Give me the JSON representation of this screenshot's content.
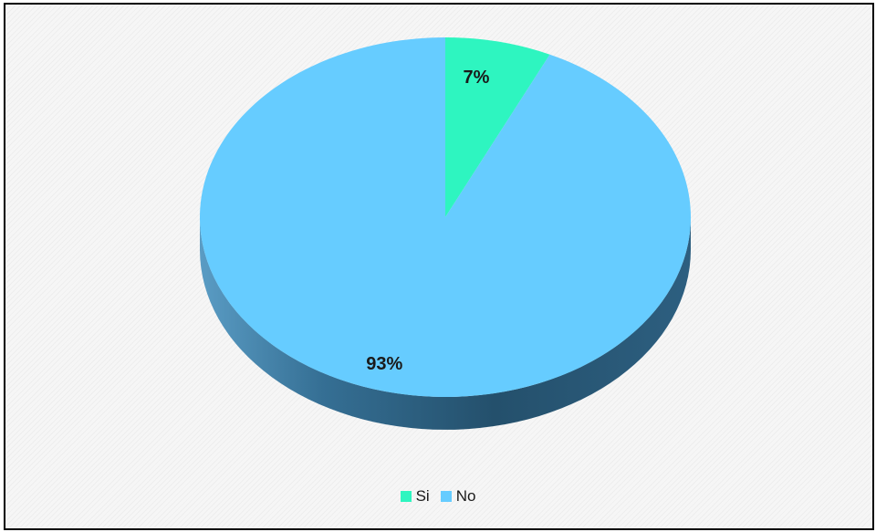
{
  "chart_data": {
    "type": "pie",
    "style": "3d",
    "categories": [
      "Si",
      "No"
    ],
    "values": [
      7,
      93
    ],
    "labels": [
      "7%",
      "93%"
    ],
    "colors": [
      "#2ef5c0",
      "#66ccff"
    ],
    "side_colors": [
      "#1a9070",
      "#2c5a78"
    ],
    "legend_position": "bottom",
    "title": ""
  }
}
